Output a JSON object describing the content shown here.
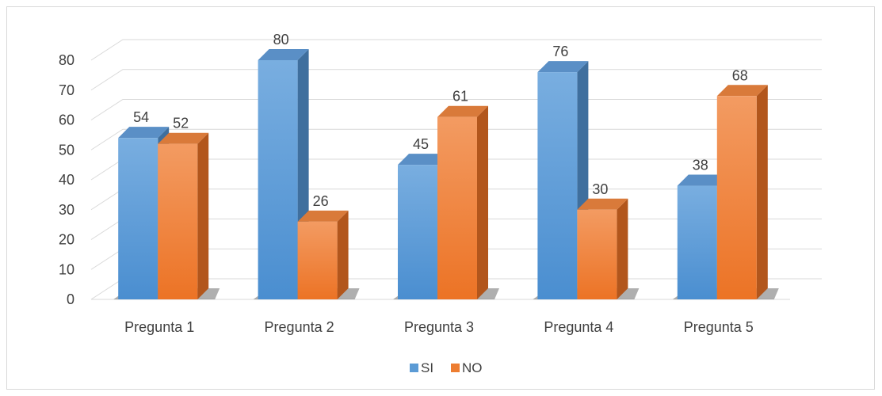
{
  "chart_data": {
    "type": "bar",
    "style": "3d-clustered-column",
    "categories": [
      "Pregunta 1",
      "Pregunta 2",
      "Pregunta 3",
      "Pregunta 4",
      "Pregunta 5"
    ],
    "series": [
      {
        "name": "SI",
        "values": [
          54,
          80,
          45,
          76,
          38
        ],
        "color": "#5b9bd5"
      },
      {
        "name": "NO",
        "values": [
          52,
          26,
          61,
          30,
          68
        ],
        "color": "#ed7d31"
      }
    ],
    "ylim": [
      0,
      80
    ],
    "yticks": [
      0,
      10,
      20,
      30,
      40,
      50,
      60,
      70,
      80
    ],
    "grid": true,
    "legend": "bottom",
    "data_labels": true
  }
}
